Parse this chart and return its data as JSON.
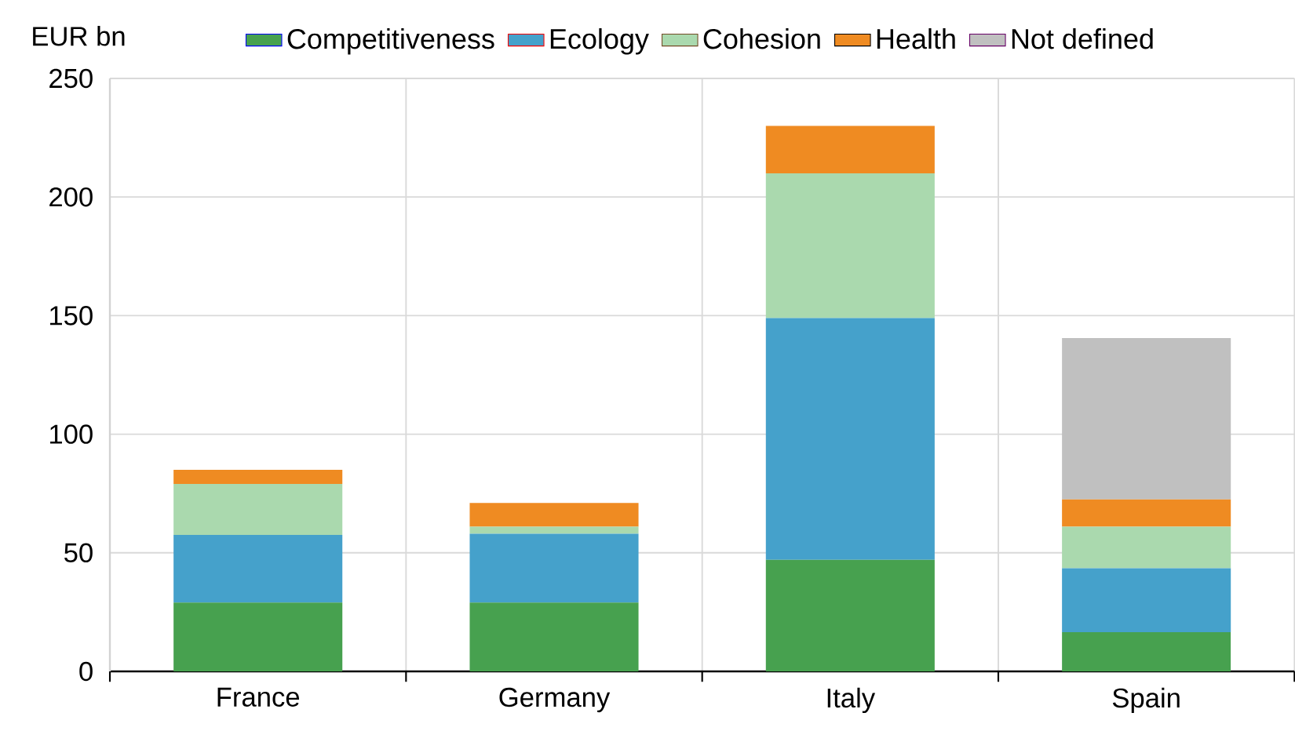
{
  "chart_data": {
    "type": "bar",
    "stacked": true,
    "ylabel": "EUR bn",
    "categories": [
      "France",
      "Germany",
      "Italy",
      "Spain"
    ],
    "series": [
      {
        "name": "Competitiveness",
        "color": "#47a14f",
        "values": [
          29,
          29,
          47,
          16.5
        ]
      },
      {
        "name": "Ecology",
        "color": "#45a1cb",
        "values": [
          28.5,
          29,
          102,
          27
        ]
      },
      {
        "name": "Cohesion",
        "color": "#aad9ae",
        "values": [
          21.5,
          3,
          61,
          17.5
        ]
      },
      {
        "name": "Health",
        "color": "#ef8b22",
        "values": [
          6,
          10,
          20,
          11.5
        ]
      },
      {
        "name": "Not defined",
        "color": "#c0c0c0",
        "values": [
          null,
          null,
          null,
          68
        ]
      }
    ],
    "ylim": [
      0,
      250
    ],
    "yticks": [
      0,
      50,
      100,
      150,
      200,
      250
    ],
    "grid": true,
    "legend": "top"
  }
}
